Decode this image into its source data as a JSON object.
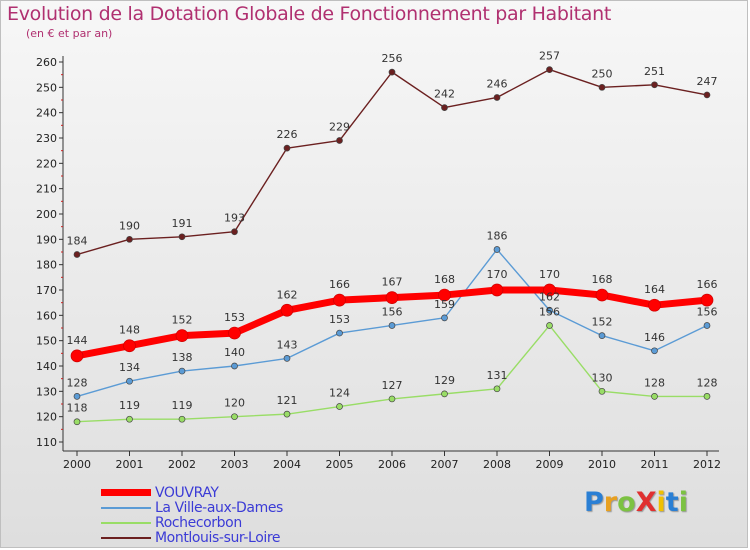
{
  "chart_data": {
    "type": "line",
    "title": "Evolution de la Dotation Globale de Fonctionnement par Habitant",
    "subtitle": "(en € et par an)",
    "x": [
      "2000",
      "2001",
      "2002",
      "2003",
      "2004",
      "2005",
      "2006",
      "2007",
      "2008",
      "2009",
      "2010",
      "2011",
      "2012"
    ],
    "yticks": [
      110,
      120,
      130,
      140,
      150,
      160,
      170,
      180,
      190,
      200,
      210,
      220,
      230,
      240,
      250,
      260
    ],
    "ylim": [
      110,
      260
    ],
    "grid": false,
    "legend_position": "bottom-left",
    "series": [
      {
        "name": "VOUVRAY",
        "color": "#ff0000",
        "values": [
          144,
          148,
          152,
          153,
          162,
          166,
          167,
          168,
          170,
          170,
          168,
          164,
          166
        ]
      },
      {
        "name": "La Ville-aux-Dames",
        "color": "#5b9bd5",
        "values": [
          128,
          134,
          138,
          140,
          143,
          153,
          156,
          159,
          186,
          162,
          152,
          146,
          156
        ]
      },
      {
        "name": "Rochecorbon",
        "color": "#99dd66",
        "values": [
          118,
          119,
          119,
          120,
          121,
          124,
          127,
          129,
          131,
          156,
          130,
          128,
          128
        ]
      },
      {
        "name": "Montlouis-sur-Loire",
        "color": "#6b2020",
        "values": [
          184,
          190,
          191,
          193,
          226,
          229,
          256,
          242,
          246,
          257,
          250,
          251,
          247
        ]
      }
    ]
  },
  "logo": {
    "text": "ProXiti",
    "colors": [
      "#2a7fd4",
      "#e8a020",
      "#7cc242",
      "#e03030",
      "#f0c000",
      "#2a7fd4",
      "#7cc242"
    ]
  }
}
